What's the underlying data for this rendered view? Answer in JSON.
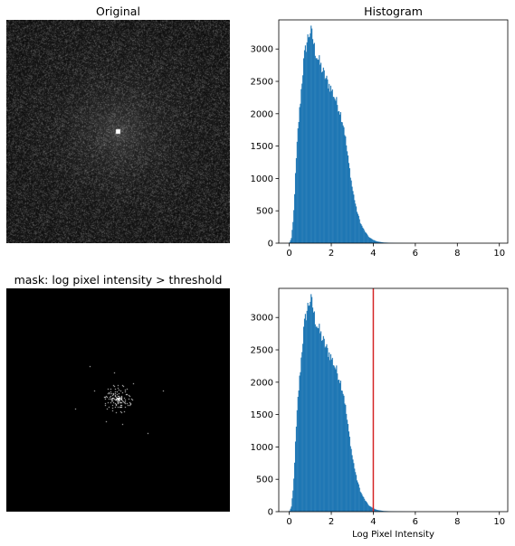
{
  "panels": {
    "original_title": "Original",
    "histogram_title": "Histogram",
    "mask_title": "mask: log pixel intensity > threshold",
    "xlabel": "Log Pixel Intensity"
  },
  "colors": {
    "bar": "#1f77b4",
    "threshold": "#d62728",
    "axis": "#000000"
  },
  "chart_data": [
    {
      "type": "bar",
      "title": "Histogram",
      "xlabel": "",
      "ylabel": "",
      "xlim": [
        -0.5,
        10.4
      ],
      "ylim": [
        0,
        3450
      ],
      "xticks": [
        0,
        2,
        4,
        6,
        8,
        10
      ],
      "yticks": [
        0,
        500,
        1000,
        1500,
        2000,
        2500,
        3000
      ],
      "bins": {
        "start": 0.0,
        "end": 10.0,
        "count": 256
      },
      "profile": [
        [
          0.0,
          0
        ],
        [
          0.1,
          80
        ],
        [
          0.2,
          400
        ],
        [
          0.3,
          1100
        ],
        [
          0.4,
          1700
        ],
        [
          0.5,
          2100
        ],
        [
          0.6,
          2500
        ],
        [
          0.7,
          2850
        ],
        [
          0.8,
          3050
        ],
        [
          0.9,
          3200
        ],
        [
          1.0,
          3280
        ],
        [
          1.1,
          3200
        ],
        [
          1.2,
          3000
        ],
        [
          1.4,
          2820
        ],
        [
          1.6,
          2650
        ],
        [
          1.8,
          2500
        ],
        [
          2.0,
          2380
        ],
        [
          2.2,
          2220
        ],
        [
          2.4,
          2050
        ],
        [
          2.6,
          1800
        ],
        [
          2.8,
          1300
        ],
        [
          3.0,
          850
        ],
        [
          3.2,
          520
        ],
        [
          3.4,
          300
        ],
        [
          3.6,
          180
        ],
        [
          3.8,
          90
        ],
        [
          4.0,
          50
        ],
        [
          4.2,
          25
        ],
        [
          4.5,
          10
        ],
        [
          5.0,
          3
        ],
        [
          6.0,
          0
        ],
        [
          10.0,
          0
        ]
      ]
    },
    {
      "type": "bar",
      "title": "",
      "xlabel": "Log Pixel Intensity",
      "ylabel": "",
      "xlim": [
        -0.5,
        10.4
      ],
      "ylim": [
        0,
        3450
      ],
      "xticks": [
        0,
        2,
        4,
        6,
        8,
        10
      ],
      "yticks": [
        0,
        500,
        1000,
        1500,
        2000,
        2500,
        3000
      ],
      "threshold": 4.0,
      "bins": {
        "start": 0.0,
        "end": 10.0,
        "count": 256
      },
      "profile": [
        [
          0.0,
          0
        ],
        [
          0.1,
          80
        ],
        [
          0.2,
          400
        ],
        [
          0.3,
          1100
        ],
        [
          0.4,
          1700
        ],
        [
          0.5,
          2100
        ],
        [
          0.6,
          2500
        ],
        [
          0.7,
          2850
        ],
        [
          0.8,
          3050
        ],
        [
          0.9,
          3200
        ],
        [
          1.0,
          3280
        ],
        [
          1.1,
          3200
        ],
        [
          1.2,
          3000
        ],
        [
          1.4,
          2820
        ],
        [
          1.6,
          2650
        ],
        [
          1.8,
          2500
        ],
        [
          2.0,
          2380
        ],
        [
          2.2,
          2220
        ],
        [
          2.4,
          2050
        ],
        [
          2.6,
          1800
        ],
        [
          2.8,
          1300
        ],
        [
          3.0,
          850
        ],
        [
          3.2,
          520
        ],
        [
          3.4,
          300
        ],
        [
          3.6,
          180
        ],
        [
          3.8,
          90
        ],
        [
          4.0,
          50
        ],
        [
          4.2,
          25
        ],
        [
          4.5,
          10
        ],
        [
          5.0,
          3
        ],
        [
          6.0,
          0
        ],
        [
          10.0,
          0
        ]
      ]
    }
  ]
}
